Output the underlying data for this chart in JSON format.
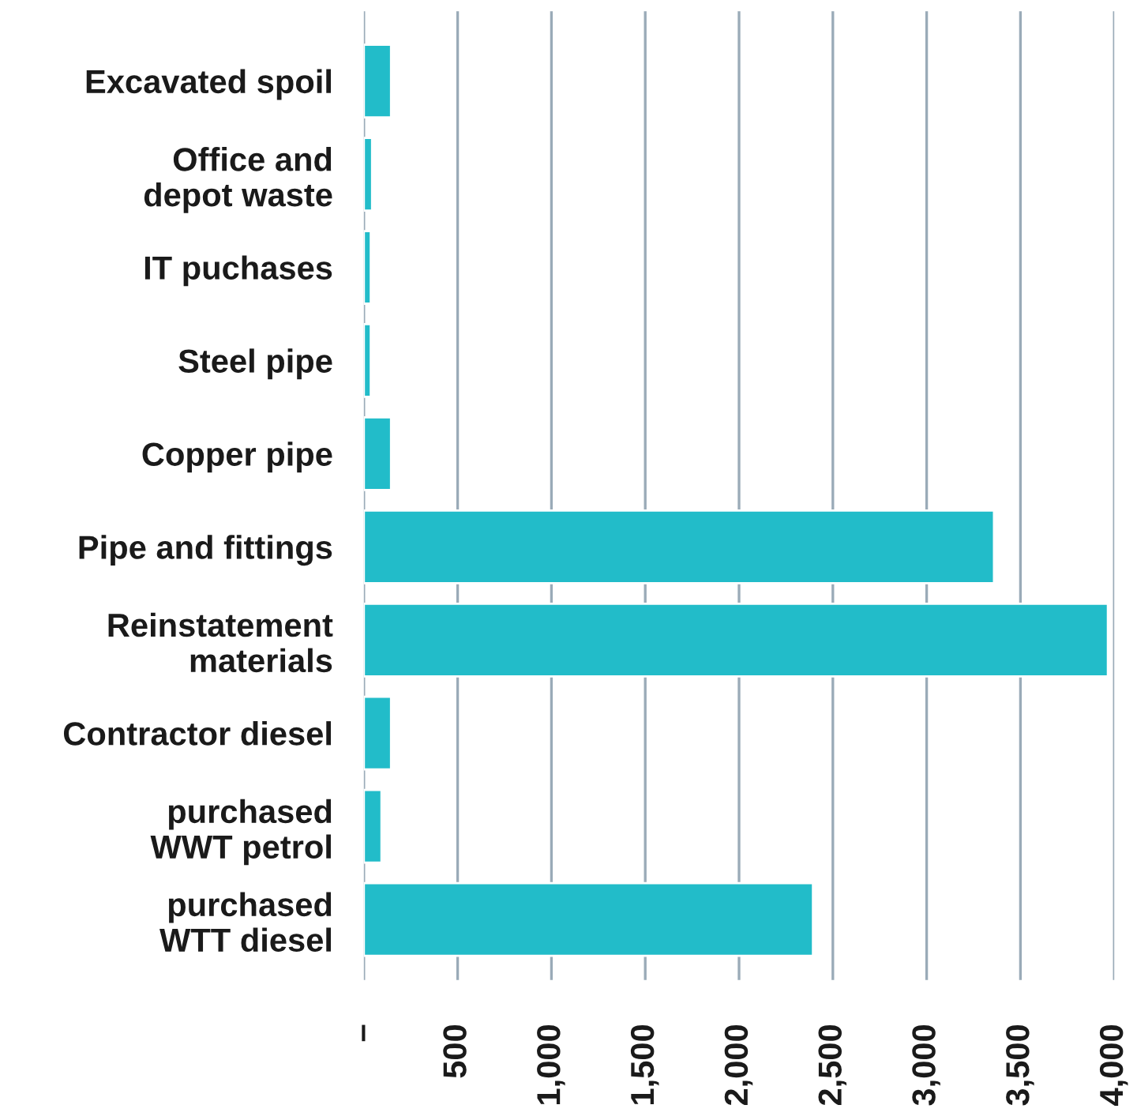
{
  "chart_data": {
    "type": "bar",
    "orientation": "horizontal",
    "categories": [
      "Excavated spoil",
      "Office and\ndepot waste",
      "IT puchases",
      "Steel pipe",
      "Copper pipe",
      "Pipe and fittings",
      "Reinstatement\nmaterials",
      "Contractor diesel",
      "purchased\nWWT petrol",
      "purchased\nWTT diesel"
    ],
    "values": [
      145,
      44,
      37,
      37,
      145,
      3359,
      3966,
      145,
      94,
      2394
    ],
    "color": "#22bcc9",
    "xlim": [
      0,
      4000
    ],
    "xticks": [
      {
        "value": 0,
        "label": "–"
      },
      {
        "value": 500,
        "label": "500"
      },
      {
        "value": 1000,
        "label": "1,000"
      },
      {
        "value": 1500,
        "label": "1,500"
      },
      {
        "value": 2000,
        "label": "2,000"
      },
      {
        "value": 2500,
        "label": "2,500"
      },
      {
        "value": 3000,
        "label": "3,000"
      },
      {
        "value": 3500,
        "label": "3,500"
      },
      {
        "value": 4000,
        "label": "4,000"
      }
    ],
    "grid": "x",
    "legend": false
  }
}
